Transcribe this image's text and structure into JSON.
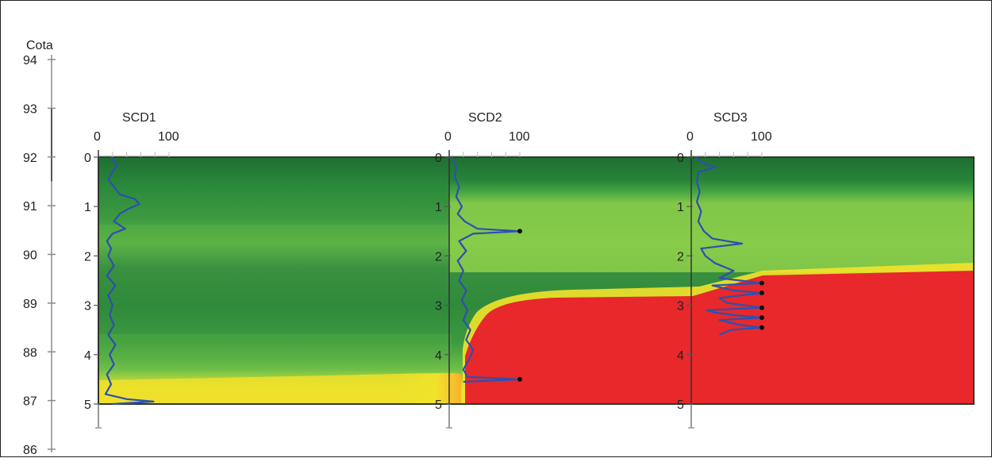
{
  "chart_data": {
    "type": "heatmap",
    "title": "",
    "elevation_axis": {
      "label": "Cota",
      "ticks": [
        94,
        93,
        92,
        91,
        90,
        89,
        88,
        87,
        86
      ],
      "range": [
        86,
        94
      ]
    },
    "depth_axis": {
      "ticks": [
        0,
        1,
        2,
        3,
        4,
        5
      ],
      "range": [
        0,
        5
      ]
    },
    "top_scale": {
      "ticks": [
        0,
        100
      ],
      "range": [
        0,
        100
      ]
    },
    "colors": {
      "dark_green": "#1f7a35",
      "mid_green": "#3f9a3e",
      "light_green": "#6cc04a",
      "yellow": "#f2e32a",
      "red": "#e8282a",
      "profile_blue": "#2e4fb0",
      "refusal_marker": "#111111"
    },
    "soundings": [
      {
        "name": "SCD1",
        "refusal_markers": [],
        "profile": [
          [
            0,
            18
          ],
          [
            0.15,
            26
          ],
          [
            0.3,
            20
          ],
          [
            0.45,
            14
          ],
          [
            0.6,
            22
          ],
          [
            0.75,
            30
          ],
          [
            0.85,
            52
          ],
          [
            0.95,
            58
          ],
          [
            1.05,
            42
          ],
          [
            1.15,
            30
          ],
          [
            1.3,
            22
          ],
          [
            1.45,
            38
          ],
          [
            1.55,
            20
          ],
          [
            1.7,
            12
          ],
          [
            1.85,
            18
          ],
          [
            2.0,
            14
          ],
          [
            2.2,
            22
          ],
          [
            2.4,
            12
          ],
          [
            2.6,
            24
          ],
          [
            2.8,
            14
          ],
          [
            3.0,
            20
          ],
          [
            3.2,
            16
          ],
          [
            3.4,
            22
          ],
          [
            3.6,
            14
          ],
          [
            3.8,
            24
          ],
          [
            4.0,
            16
          ],
          [
            4.2,
            22
          ],
          [
            4.4,
            12
          ],
          [
            4.6,
            18
          ],
          [
            4.8,
            10
          ],
          [
            4.9,
            40
          ],
          [
            4.95,
            78
          ],
          [
            5.0,
            20
          ]
        ]
      },
      {
        "name": "SCD2",
        "refusal_markers": [
          1.5,
          4.5
        ],
        "profile": [
          [
            0,
            4
          ],
          [
            0.2,
            10
          ],
          [
            0.4,
            8
          ],
          [
            0.6,
            14
          ],
          [
            0.8,
            10
          ],
          [
            1.0,
            18
          ],
          [
            1.15,
            12
          ],
          [
            1.3,
            22
          ],
          [
            1.45,
            40
          ],
          [
            1.5,
            100
          ],
          [
            1.55,
            34
          ],
          [
            1.7,
            14
          ],
          [
            1.9,
            24
          ],
          [
            2.1,
            12
          ],
          [
            2.3,
            20
          ],
          [
            2.5,
            14
          ],
          [
            2.7,
            24
          ],
          [
            2.9,
            18
          ],
          [
            3.1,
            26
          ],
          [
            3.3,
            20
          ],
          [
            3.5,
            30
          ],
          [
            3.7,
            24
          ],
          [
            3.9,
            34
          ],
          [
            4.1,
            28
          ],
          [
            4.3,
            20
          ],
          [
            4.45,
            26
          ],
          [
            4.5,
            100
          ],
          [
            4.55,
            20
          ]
        ]
      },
      {
        "name": "SCD3",
        "refusal_markers": [
          2.55,
          2.75,
          3.05,
          3.25,
          3.45
        ],
        "profile": [
          [
            0,
            6
          ],
          [
            0.1,
            14
          ],
          [
            0.2,
            34
          ],
          [
            0.3,
            10
          ],
          [
            0.5,
            8
          ],
          [
            0.7,
            12
          ],
          [
            0.9,
            8
          ],
          [
            1.1,
            14
          ],
          [
            1.3,
            10
          ],
          [
            1.5,
            18
          ],
          [
            1.65,
            30
          ],
          [
            1.75,
            72
          ],
          [
            1.85,
            14
          ],
          [
            2.0,
            20
          ],
          [
            2.15,
            34
          ],
          [
            2.3,
            60
          ],
          [
            2.45,
            40
          ],
          [
            2.55,
            100
          ],
          [
            2.6,
            30
          ],
          [
            2.7,
            60
          ],
          [
            2.75,
            100
          ],
          [
            2.85,
            40
          ],
          [
            2.95,
            50
          ],
          [
            3.05,
            100
          ],
          [
            3.1,
            22
          ],
          [
            3.15,
            34
          ],
          [
            3.2,
            60
          ],
          [
            3.25,
            100
          ],
          [
            3.3,
            40
          ],
          [
            3.4,
            70
          ],
          [
            3.45,
            100
          ],
          [
            3.5,
            55
          ],
          [
            3.6,
            40
          ]
        ]
      }
    ]
  }
}
